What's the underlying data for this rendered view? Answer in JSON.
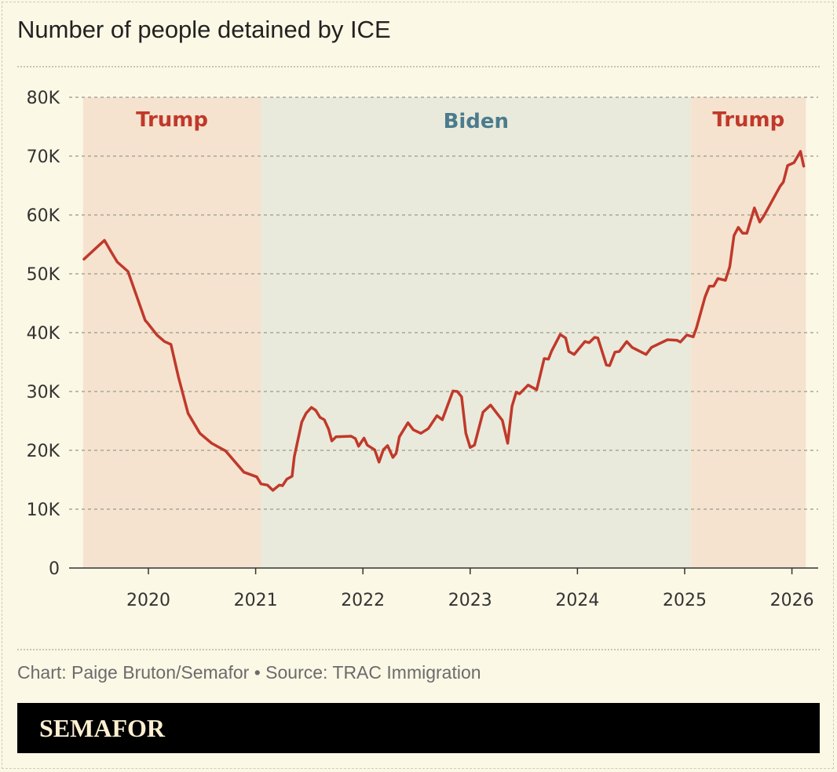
{
  "title": "Number of people detained by ICE",
  "credit": "Chart: Paige Bruton/Semafor • Source: TRAC Immigration",
  "brand": "SEMAFOR",
  "colors": {
    "background": "#fcf8e6",
    "trump_shade": "#f5e3cf",
    "biden_shade": "#e9eadb",
    "line": "#c0392b",
    "trump_label": "#c0392b",
    "biden_label": "#4b7b8d"
  },
  "chart_data": {
    "type": "line",
    "title": "Number of people detained by ICE",
    "xlabel": "",
    "ylabel": "",
    "xlim": [
      2019.2,
      2026.25
    ],
    "ylim": [
      0,
      80000
    ],
    "grid": true,
    "x_ticks": [
      2020,
      2021,
      2022,
      2023,
      2024,
      2025,
      2026
    ],
    "x_tick_labels": [
      "2020",
      "2021",
      "2022",
      "2023",
      "2024",
      "2025",
      "2026"
    ],
    "y_ticks": [
      0,
      10000,
      20000,
      30000,
      40000,
      50000,
      60000,
      70000,
      80000
    ],
    "y_tick_labels": [
      "0",
      "10K",
      "20K",
      "30K",
      "40K",
      "50K",
      "60K",
      "70K",
      "80K"
    ],
    "eras": [
      {
        "label": "Trump",
        "start": 2019.39,
        "end": 2021.05,
        "party": "trump"
      },
      {
        "label": "Biden",
        "start": 2021.05,
        "end": 2025.06,
        "party": "biden"
      },
      {
        "label": "Trump",
        "start": 2025.06,
        "end": 2026.13,
        "party": "trump"
      }
    ],
    "series": [
      {
        "x": [
          2019.4,
          2019.59,
          2019.66,
          2019.71,
          2019.81,
          2019.97,
          2019.99,
          2020.08,
          2020.15,
          2020.21,
          2020.28,
          2020.37,
          2020.48,
          2020.59,
          2020.72,
          2020.89,
          2021.01,
          2021.05,
          2021.11,
          2021.16,
          2021.22,
          2021.25,
          2021.29,
          2021.34,
          2021.36,
          2021.43,
          2021.47,
          2021.52,
          2021.56,
          2021.6,
          2021.64,
          2021.68,
          2021.71,
          2021.75,
          2021.89,
          2021.93,
          2021.96,
          2022.01,
          2022.04,
          2022.11,
          2022.15,
          2022.19,
          2022.23,
          2022.28,
          2022.31,
          2022.34,
          2022.42,
          2022.47,
          2022.54,
          2022.61,
          2022.69,
          2022.74,
          2022.84,
          2022.88,
          2022.92,
          2022.96,
          2023.0,
          2023.04,
          2023.12,
          2023.19,
          2023.3,
          2023.35,
          2023.39,
          2023.43,
          2023.46,
          2023.54,
          2023.62,
          2023.69,
          2023.73,
          2023.76,
          2023.84,
          2023.89,
          2023.92,
          2023.97,
          2024.07,
          2024.11,
          2024.16,
          2024.19,
          2024.27,
          2024.3,
          2024.35,
          2024.39,
          2024.46,
          2024.51,
          2024.64,
          2024.69,
          2024.84,
          2024.93,
          2024.96,
          2025.02,
          2025.08,
          2025.11,
          2025.19,
          2025.23,
          2025.27,
          2025.31,
          2025.38,
          2025.42,
          2025.46,
          2025.5,
          2025.54,
          2025.58,
          2025.65,
          2025.7,
          2025.74,
          2025.89,
          2025.92,
          2025.96,
          2026.02,
          2026.08,
          2026.11
        ],
        "values": [
          52500,
          55700,
          53500,
          52000,
          50400,
          42100,
          41700,
          39600,
          38500,
          38000,
          32500,
          26300,
          22900,
          21200,
          19900,
          16300,
          15500,
          14300,
          14100,
          13200,
          14100,
          14000,
          15100,
          15600,
          18900,
          24800,
          26300,
          27300,
          26800,
          25600,
          25200,
          23600,
          21600,
          22300,
          22400,
          22000,
          20700,
          22100,
          20900,
          20100,
          18000,
          20100,
          20800,
          18800,
          19500,
          22300,
          24700,
          23500,
          22900,
          23700,
          25900,
          25200,
          30100,
          30000,
          29100,
          22900,
          20500,
          20900,
          26500,
          27700,
          25100,
          21200,
          27500,
          29900,
          29600,
          31100,
          30300,
          35600,
          35500,
          36900,
          39700,
          39100,
          36800,
          36300,
          38500,
          38300,
          39200,
          39100,
          34500,
          34400,
          36700,
          36800,
          38500,
          37500,
          36300,
          37500,
          38800,
          38700,
          38400,
          39600,
          39300,
          40800,
          46100,
          47900,
          47900,
          49200,
          48900,
          51200,
          56500,
          57900,
          56900,
          56900,
          61200,
          58800,
          59900,
          64900,
          65600,
          68400,
          68900,
          70800,
          68300
        ]
      }
    ]
  }
}
